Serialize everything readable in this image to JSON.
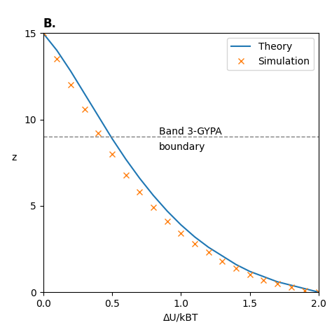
{
  "chart_data": {
    "type": "line",
    "title": "B.",
    "x_label": "ΔU/kBT",
    "y_label": "z",
    "series": [
      {
        "name": "Theory",
        "type": "line",
        "line_style": "solid",
        "x": [
          0.0,
          0.05,
          0.1,
          0.15,
          0.2,
          0.3,
          0.4,
          0.5,
          0.6,
          0.7,
          0.8,
          0.9,
          1.0,
          1.1,
          1.2,
          1.3,
          1.4,
          1.5,
          1.6,
          1.7,
          1.8,
          1.9,
          2.0
        ],
        "values": [
          15,
          14.5,
          14.0,
          13.4,
          12.8,
          11.5,
          10.2,
          8.9,
          7.7,
          6.6,
          5.6,
          4.7,
          3.9,
          3.2,
          2.6,
          2.1,
          1.6,
          1.2,
          0.9,
          0.6,
          0.4,
          0.2,
          0.0
        ]
      },
      {
        "name": "Simulation",
        "type": "scatter",
        "marker": "x",
        "x": [
          0.0,
          0.1,
          0.2,
          0.3,
          0.4,
          0.5,
          0.6,
          0.7,
          0.8,
          0.9,
          1.0,
          1.1,
          1.2,
          1.3,
          1.4,
          1.5,
          1.6,
          1.7,
          1.8,
          1.9,
          2.0
        ],
        "values": [
          15,
          13.5,
          12.0,
          10.6,
          9.2,
          8.0,
          6.8,
          5.8,
          4.9,
          4.1,
          3.4,
          2.8,
          2.3,
          1.8,
          1.4,
          1.0,
          0.7,
          0.5,
          0.3,
          0.1,
          0.0
        ]
      }
    ],
    "reference_line": 9,
    "annotations": [
      "Band 3-GYPA",
      "boundary"
    ],
    "xlim": [
      0,
      2
    ],
    "xticks": [
      {
        "value": 0,
        "label": "0.0"
      },
      {
        "value": 0.5,
        "label": "0.5"
      },
      {
        "value": 1,
        "label": "1.0"
      },
      {
        "value": 1.5,
        "label": "1.5"
      },
      {
        "value": 2,
        "label": "2.0"
      }
    ],
    "ylim": [
      0,
      15
    ],
    "yticks": [
      0,
      5,
      10,
      15
    ],
    "legend": "upper right",
    "grid": false
  }
}
